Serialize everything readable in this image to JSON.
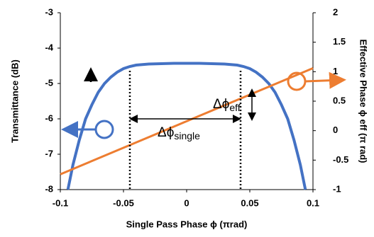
{
  "chart_data": {
    "type": "line",
    "x_label": "Single Pass Phase ϕ (πrad)",
    "y_label": "Transmittance (dB)",
    "y2_label": "Effective Phase ϕ eff (π rad)",
    "xlim": [
      -0.1,
      0.1
    ],
    "xticks": [
      -0.1,
      -0.05,
      0,
      0.05,
      0.1
    ],
    "ylim": [
      -8,
      -3
    ],
    "yticks": [
      -3,
      -4,
      -5,
      -6,
      -7,
      -8
    ],
    "y2lim": [
      -1,
      2
    ],
    "y2ticks": [
      2,
      1.5,
      1,
      0.5,
      0,
      -0.5,
      -1
    ],
    "series": [
      {
        "color": "#4472c4",
        "x": [
          -0.094,
          -0.09,
          -0.085,
          -0.08,
          -0.075,
          -0.07,
          -0.065,
          -0.06,
          -0.055,
          -0.05,
          -0.045,
          -0.04,
          -0.03,
          -0.02,
          -0.01,
          0,
          0.01,
          0.02,
          0.03,
          0.04,
          0.045,
          0.05,
          0.055,
          0.06,
          0.065,
          0.07,
          0.075,
          0.08,
          0.085,
          0.09,
          0.094
        ],
        "values": [
          -8,
          -7.3,
          -6.6,
          -6.0,
          -5.6,
          -5.25,
          -5.0,
          -4.82,
          -4.68,
          -4.58,
          -4.52,
          -4.48,
          -4.45,
          -4.44,
          -4.43,
          -4.43,
          -4.43,
          -4.44,
          -4.45,
          -4.48,
          -4.52,
          -4.58,
          -4.68,
          -4.82,
          -5.0,
          -5.25,
          -5.6,
          -6.0,
          -6.6,
          -7.3,
          -8
        ]
      },
      {
        "color": "#ed7d31",
        "axis": "y2",
        "x": [
          -0.1,
          0.1
        ],
        "values": [
          -0.74,
          1.06
        ]
      }
    ],
    "annotations": [
      {
        "text": "Δϕ",
        "sub": "eff"
      },
      {
        "text": "Δϕ",
        "sub": "single"
      }
    ]
  }
}
